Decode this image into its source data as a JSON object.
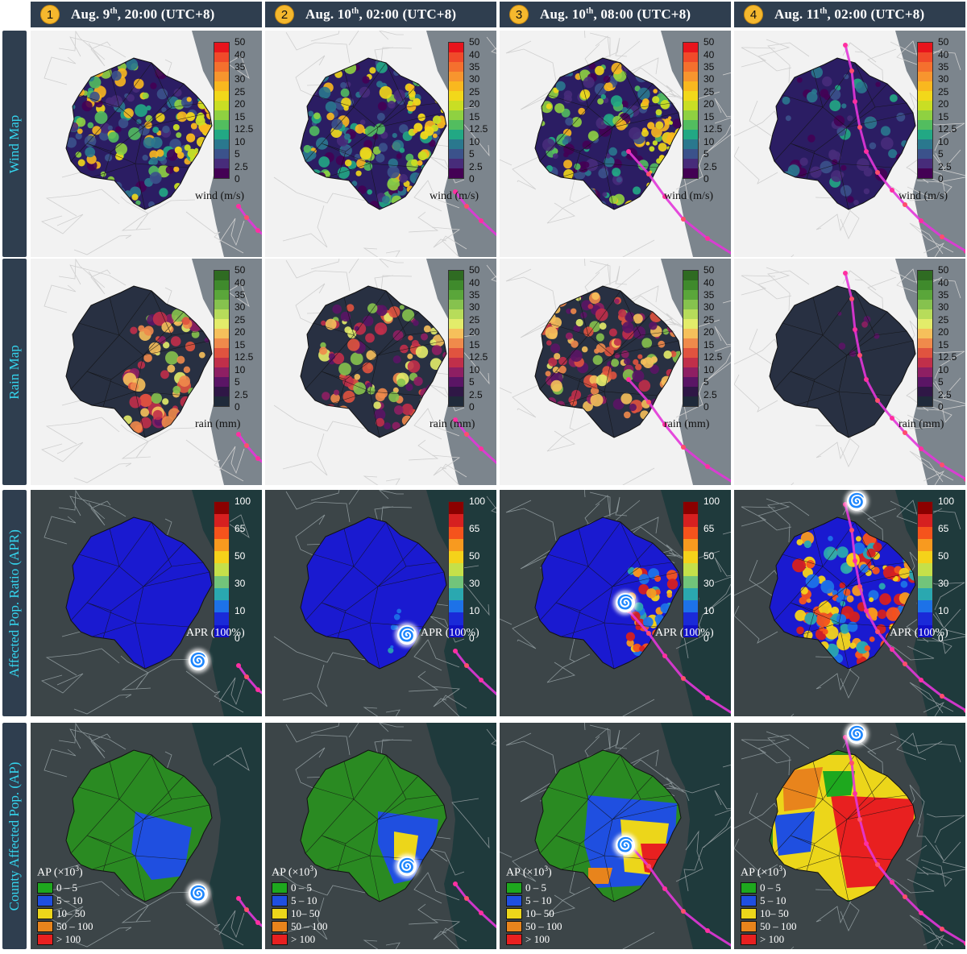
{
  "headers": [
    {
      "num": "1",
      "month": "Aug. 9",
      "sup": "th",
      "time": ", 20:00 (UTC+8)"
    },
    {
      "num": "2",
      "month": "Aug. 10",
      "sup": "th",
      "time": ", 02:00 (UTC+8)"
    },
    {
      "num": "3",
      "month": "Aug. 10",
      "sup": "th",
      "time": ", 08:00 (UTC+8)"
    },
    {
      "num": "4",
      "month": "Aug. 11",
      "sup": "th",
      "time": ", 02:00 (UTC+8)"
    }
  ],
  "rows": [
    {
      "key": "wind",
      "label": "Wind Map"
    },
    {
      "key": "rain",
      "label": "Rain Map"
    },
    {
      "key": "apr",
      "label": "Affected Pop. Ratio (APR)"
    },
    {
      "key": "ap",
      "label": "County Affected Pop. (AP)"
    }
  ],
  "wind_legend": {
    "label": "wind (m/s)",
    "ticks": [
      "50",
      "40",
      "35",
      "30",
      "25",
      "20",
      "15",
      "12.5",
      "10",
      "5",
      "2.5",
      "0"
    ],
    "colors": [
      "#e8141c",
      "#f04a2a",
      "#f4702e",
      "#f7952e",
      "#f9b81f",
      "#f2d81a",
      "#c9de24",
      "#8fd141",
      "#52bd5f",
      "#22a884",
      "#2a788e",
      "#3b528b",
      "#472c7a",
      "#440154"
    ]
  },
  "rain_legend": {
    "label": "rain (mm)",
    "ticks": [
      "50",
      "40",
      "35",
      "30",
      "25",
      "20",
      "15",
      "12.5",
      "10",
      "5",
      "2.5",
      "0"
    ],
    "colors": [
      "#2f6b22",
      "#3f8a2c",
      "#5aa63a",
      "#86c24e",
      "#b7dc5a",
      "#e3ec6a",
      "#f6c05b",
      "#f08a4b",
      "#e0533f",
      "#c02f4a",
      "#8e1f63",
      "#5a1565",
      "#2f1746",
      "#1f2a3a"
    ]
  },
  "apr_legend": {
    "label": "APR (100%)",
    "ticks": [
      "100",
      "65",
      "50",
      "30",
      "10",
      "0"
    ],
    "colors": [
      "#8b0000",
      "#d62020",
      "#f5531c",
      "#f89a1f",
      "#f5d21a",
      "#c5e04a",
      "#72c47a",
      "#2aa8b0",
      "#1d72e8",
      "#1a2ad8",
      "#1010c8"
    ]
  },
  "ap_legend": {
    "title": "AP (×10",
    "title_sup": "3",
    "title_end": ")",
    "items": [
      {
        "label": "0 – 5",
        "color": "#1ea81e"
      },
      {
        "label": "5 – 10",
        "color": "#1f4fe0"
      },
      {
        "label": "10– 50",
        "color": "#ecd61a"
      },
      {
        "label": "50 – 100",
        "color": "#e8841c"
      },
      {
        "label": "> 100",
        "color": "#e82020"
      }
    ]
  },
  "colors": {
    "header_bg": "#2f3e4f",
    "row_label_text": "#35d5ee",
    "badge": "#f5b82e",
    "track": "#e236d8",
    "map_bg": "#f2f2f2",
    "sea_light": "#7c858d",
    "sea_dark": "#1f3a3c"
  }
}
